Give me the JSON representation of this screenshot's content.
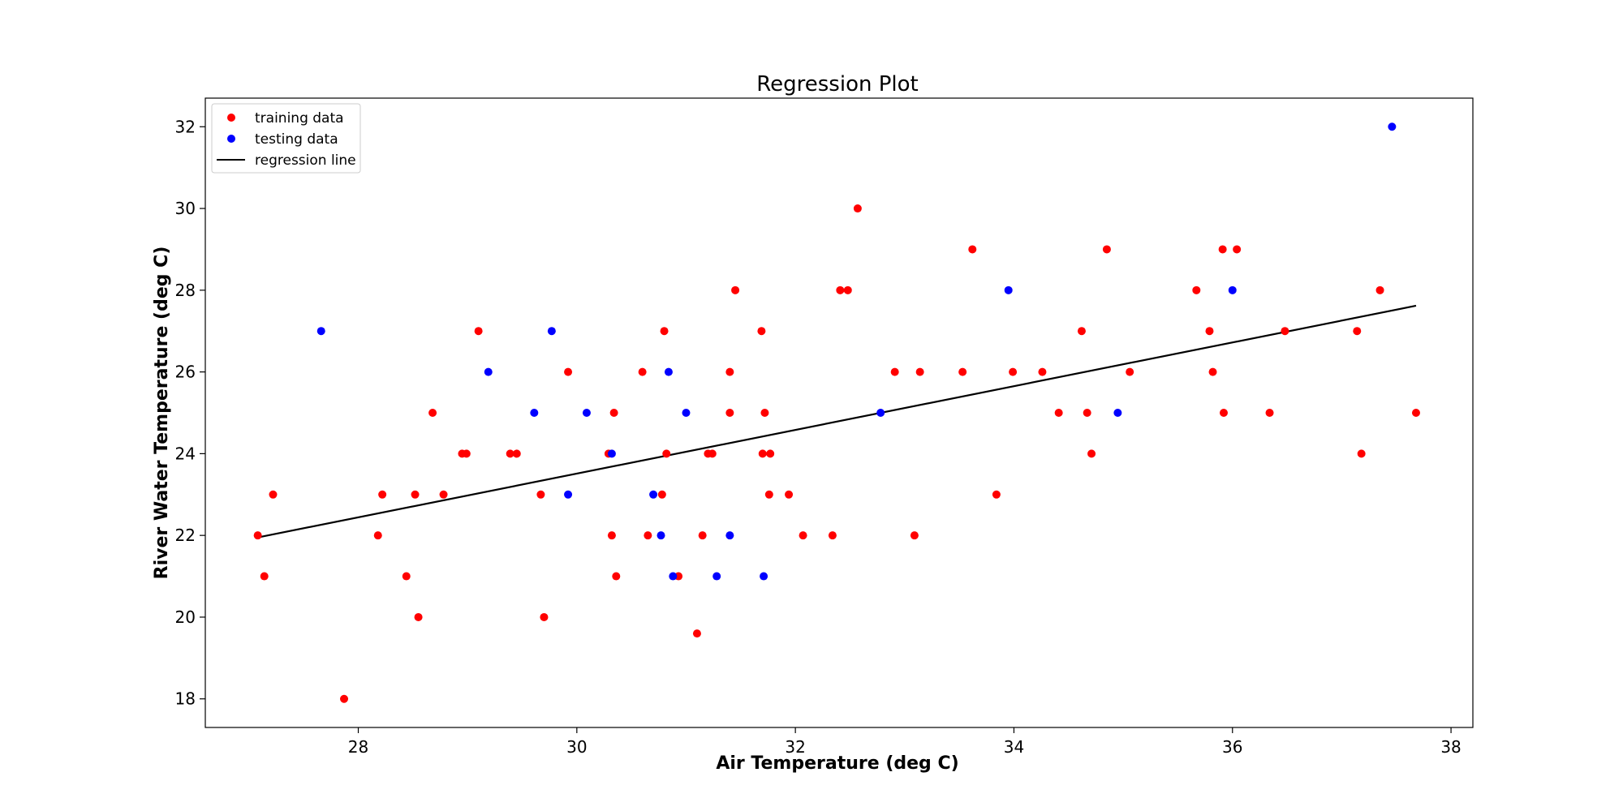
{
  "chart_data": {
    "type": "scatter",
    "title": "Regression Plot",
    "xlabel": "Air Temperature (deg C)",
    "ylabel": "River Water Temperature (deg C)",
    "xlim": [
      26.6,
      38.2
    ],
    "ylim": [
      17.3,
      32.7
    ],
    "xticks": [
      28,
      30,
      32,
      34,
      36,
      38
    ],
    "yticks": [
      18,
      20,
      22,
      24,
      26,
      28,
      30,
      32
    ],
    "grid": false,
    "legend_position": "top-left",
    "legend": [
      "training data",
      "testing data",
      "regression line"
    ],
    "series": [
      {
        "name": "training data",
        "color": "#ff0000",
        "marker": "circle",
        "points": [
          [
            27.08,
            22
          ],
          [
            27.14,
            21
          ],
          [
            27.22,
            23
          ],
          [
            27.87,
            18
          ],
          [
            28.18,
            22
          ],
          [
            28.22,
            23
          ],
          [
            28.44,
            21
          ],
          [
            28.52,
            23
          ],
          [
            28.55,
            20
          ],
          [
            28.68,
            25
          ],
          [
            28.78,
            23
          ],
          [
            28.95,
            24
          ],
          [
            28.99,
            24
          ],
          [
            29.1,
            27
          ],
          [
            29.39,
            24
          ],
          [
            29.45,
            24
          ],
          [
            29.67,
            23
          ],
          [
            29.7,
            20
          ],
          [
            29.92,
            26
          ],
          [
            30.29,
            24
          ],
          [
            30.32,
            22
          ],
          [
            30.34,
            25
          ],
          [
            30.36,
            21
          ],
          [
            30.6,
            26
          ],
          [
            30.65,
            22
          ],
          [
            30.78,
            23
          ],
          [
            30.8,
            27
          ],
          [
            30.82,
            24
          ],
          [
            30.93,
            21
          ],
          [
            31.1,
            19.6
          ],
          [
            31.15,
            22
          ],
          [
            31.2,
            24
          ],
          [
            31.24,
            24
          ],
          [
            31.4,
            26
          ],
          [
            31.4,
            25
          ],
          [
            31.45,
            28
          ],
          [
            31.69,
            27
          ],
          [
            31.7,
            24
          ],
          [
            31.72,
            25
          ],
          [
            31.76,
            23
          ],
          [
            31.77,
            24
          ],
          [
            31.94,
            23
          ],
          [
            32.07,
            22
          ],
          [
            32.34,
            22
          ],
          [
            32.41,
            28
          ],
          [
            32.48,
            28
          ],
          [
            32.57,
            30
          ],
          [
            32.91,
            26
          ],
          [
            33.09,
            22
          ],
          [
            33.14,
            26
          ],
          [
            33.53,
            26
          ],
          [
            33.62,
            29
          ],
          [
            33.84,
            23
          ],
          [
            33.99,
            26
          ],
          [
            34.26,
            26
          ],
          [
            34.41,
            25
          ],
          [
            34.62,
            27
          ],
          [
            34.67,
            25
          ],
          [
            34.71,
            24
          ],
          [
            34.85,
            29
          ],
          [
            35.06,
            26
          ],
          [
            35.67,
            28
          ],
          [
            35.79,
            27
          ],
          [
            35.82,
            26
          ],
          [
            35.91,
            29
          ],
          [
            35.92,
            25
          ],
          [
            36.04,
            29
          ],
          [
            36.34,
            25
          ],
          [
            36.48,
            27
          ],
          [
            37.14,
            27
          ],
          [
            37.18,
            24
          ],
          [
            37.35,
            28
          ],
          [
            37.68,
            25
          ]
        ]
      },
      {
        "name": "testing data",
        "color": "#0000ff",
        "marker": "circle",
        "points": [
          [
            27.66,
            27
          ],
          [
            29.19,
            26
          ],
          [
            29.61,
            25
          ],
          [
            29.77,
            27
          ],
          [
            29.92,
            23
          ],
          [
            30.09,
            25
          ],
          [
            30.32,
            24
          ],
          [
            30.7,
            23
          ],
          [
            30.77,
            22
          ],
          [
            30.84,
            26
          ],
          [
            30.88,
            21
          ],
          [
            31.0,
            25
          ],
          [
            31.28,
            21
          ],
          [
            31.4,
            22
          ],
          [
            31.71,
            21
          ],
          [
            32.78,
            25
          ],
          [
            33.95,
            28
          ],
          [
            34.95,
            25
          ],
          [
            36.0,
            28
          ],
          [
            37.46,
            32
          ]
        ]
      }
    ],
    "regression_line": {
      "name": "regression line",
      "color": "#000000",
      "x": [
        27.08,
        37.68
      ],
      "y": [
        21.95,
        27.62
      ]
    }
  }
}
